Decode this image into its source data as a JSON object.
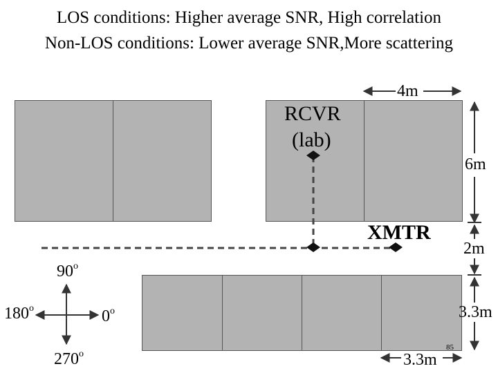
{
  "titles": {
    "line1": "LOS conditions: Higher average SNR, High correlation",
    "line2": "Non-LOS conditions: Lower average SNR,More scattering"
  },
  "labels": {
    "receiver": "RCVR",
    "receiver_location": "(lab)",
    "transmitter": "XMTR",
    "room_width": "4m",
    "room_height": "6m",
    "corridor_width": "2m",
    "lower_room_height": "3.3m",
    "lower_room_width": "3.3m",
    "slide_number": "85"
  },
  "compass": {
    "north": "90",
    "west": "180",
    "east": "0",
    "south": "270",
    "unit": "o"
  },
  "colors": {
    "room_fill": "#b3b3b3",
    "room_border": "#555555",
    "line": "#333333"
  }
}
